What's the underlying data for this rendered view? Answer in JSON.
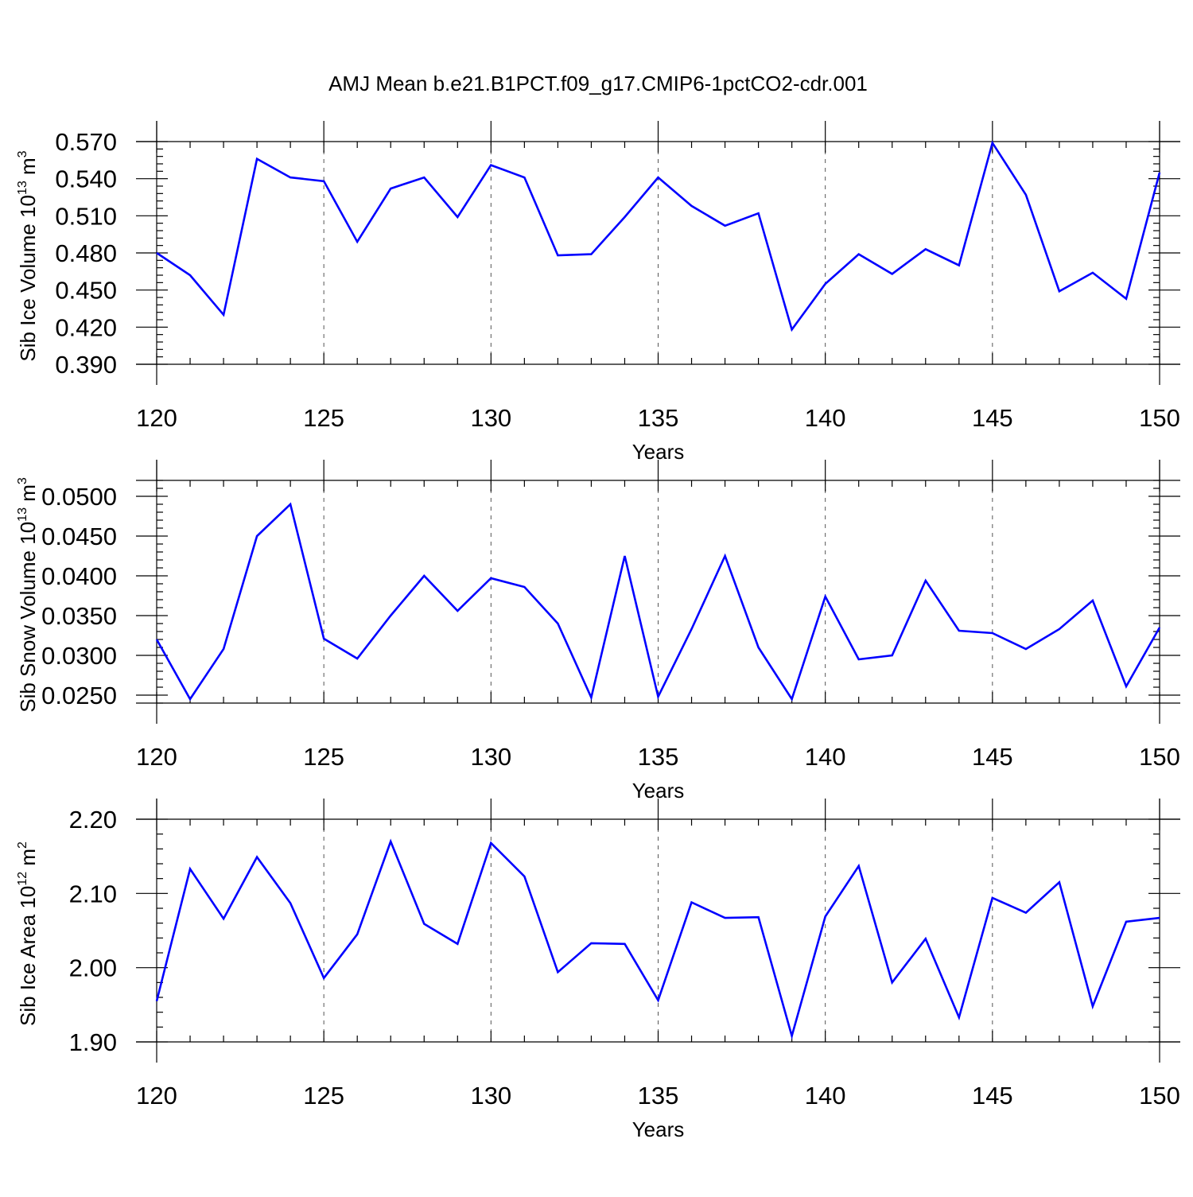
{
  "title": "AMJ Mean b.e21.B1PCT.f09_g17.CMIP6-1pctCO2-cdr.001",
  "colors": {
    "series": "#0000ff",
    "axes": "#000000",
    "grid": "#555555"
  },
  "chart_data": [
    {
      "type": "line",
      "ylabel": "Sib Ice Volume 10",
      "ylabel_exp": "13",
      "ylabel_unit": "m",
      "ylabel_unit_exp": "3",
      "xlabel": "Years",
      "xlim": [
        120,
        150
      ],
      "ylim": [
        0.39,
        0.57
      ],
      "x_ticks": [
        "120",
        "125",
        "130",
        "135",
        "140",
        "145",
        "150"
      ],
      "y_ticks": [
        "0.390",
        "0.420",
        "0.450",
        "0.480",
        "0.510",
        "0.540",
        "0.570"
      ],
      "grid": "vertical dashed at major x ticks",
      "x": [
        120,
        121,
        122,
        123,
        124,
        125,
        126,
        127,
        128,
        129,
        130,
        131,
        132,
        133,
        134,
        135,
        136,
        137,
        138,
        139,
        140,
        141,
        142,
        143,
        144,
        145,
        146,
        147,
        148,
        149,
        150
      ],
      "values": [
        0.48,
        0.462,
        0.43,
        0.556,
        0.541,
        0.538,
        0.489,
        0.532,
        0.541,
        0.509,
        0.551,
        0.541,
        0.478,
        0.479,
        0.509,
        0.541,
        0.518,
        0.502,
        0.512,
        0.418,
        0.455,
        0.479,
        0.463,
        0.483,
        0.47,
        0.569,
        0.527,
        0.449,
        0.464,
        0.443,
        0.545
      ]
    },
    {
      "type": "line",
      "ylabel": "Sib Snow Volume 10",
      "ylabel_exp": "13",
      "ylabel_unit": "m",
      "ylabel_unit_exp": "3",
      "xlabel": "Years",
      "xlim": [
        120,
        150
      ],
      "ylim": [
        0.024,
        0.052
      ],
      "x_ticks": [
        "120",
        "125",
        "130",
        "135",
        "140",
        "145",
        "150"
      ],
      "y_ticks": [
        "0.0250",
        "0.0300",
        "0.0350",
        "0.0400",
        "0.0450",
        "0.0500"
      ],
      "grid": "vertical dashed at major x ticks",
      "x": [
        120,
        121,
        122,
        123,
        124,
        125,
        126,
        127,
        128,
        129,
        130,
        131,
        132,
        133,
        134,
        135,
        136,
        137,
        138,
        139,
        140,
        141,
        142,
        143,
        144,
        145,
        146,
        147,
        148,
        149,
        150
      ],
      "values": [
        0.032,
        0.0245,
        0.0308,
        0.045,
        0.049,
        0.0321,
        0.0296,
        0.035,
        0.04,
        0.0356,
        0.0397,
        0.0386,
        0.034,
        0.0247,
        0.0425,
        0.0248,
        0.0333,
        0.0425,
        0.031,
        0.0245,
        0.0374,
        0.0295,
        0.03,
        0.0394,
        0.0331,
        0.0328,
        0.0308,
        0.0333,
        0.0369,
        0.0261,
        0.0335
      ]
    },
    {
      "type": "line",
      "ylabel": "Sib Ice Area 10",
      "ylabel_exp": "12",
      "ylabel_unit": "m",
      "ylabel_unit_exp": "2",
      "xlabel": "Years",
      "xlim": [
        120,
        150
      ],
      "ylim": [
        1.9,
        2.2
      ],
      "x_ticks": [
        "120",
        "125",
        "130",
        "135",
        "140",
        "145",
        "150"
      ],
      "y_ticks": [
        "1.90",
        "2.00",
        "2.10",
        "2.20"
      ],
      "grid": "vertical dashed at major x ticks",
      "x": [
        120,
        121,
        122,
        123,
        124,
        125,
        126,
        127,
        128,
        129,
        130,
        131,
        132,
        133,
        134,
        135,
        136,
        137,
        138,
        139,
        140,
        141,
        142,
        143,
        144,
        145,
        146,
        147,
        148,
        149,
        150
      ],
      "values": [
        1.955,
        2.133,
        2.066,
        2.149,
        2.087,
        1.986,
        2.045,
        2.17,
        2.059,
        2.032,
        2.168,
        2.123,
        1.994,
        2.033,
        2.032,
        1.956,
        2.088,
        2.067,
        2.068,
        1.908,
        2.069,
        2.137,
        1.98,
        2.039,
        1.933,
        2.094,
        2.074,
        2.115,
        1.948,
        2.062,
        2.067
      ]
    }
  ]
}
